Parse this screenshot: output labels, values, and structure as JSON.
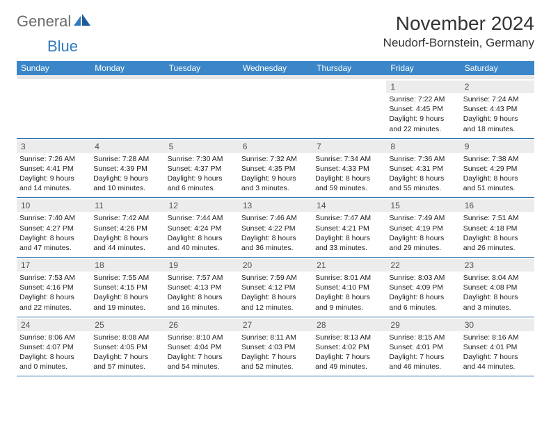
{
  "brand": {
    "a": "General",
    "b": "Blue"
  },
  "title": "November 2024",
  "location": "Neudorf-Bornstein, Germany",
  "colors": {
    "header_bg": "#3a86c8",
    "header_text": "#ffffff",
    "daynum_bg": "#ececec",
    "daynum_text": "#505050",
    "body_text": "#222222",
    "rule": "#2f6ea8",
    "logo_gray": "#6b6b6b",
    "logo_blue": "#2f7bbf"
  },
  "dow": [
    "Sunday",
    "Monday",
    "Tuesday",
    "Wednesday",
    "Thursday",
    "Friday",
    "Saturday"
  ],
  "weeks": [
    [
      null,
      null,
      null,
      null,
      null,
      {
        "n": "1",
        "sr": "Sunrise: 7:22 AM",
        "ss": "Sunset: 4:45 PM",
        "dl1": "Daylight: 9 hours",
        "dl2": "and 22 minutes."
      },
      {
        "n": "2",
        "sr": "Sunrise: 7:24 AM",
        "ss": "Sunset: 4:43 PM",
        "dl1": "Daylight: 9 hours",
        "dl2": "and 18 minutes."
      }
    ],
    [
      {
        "n": "3",
        "sr": "Sunrise: 7:26 AM",
        "ss": "Sunset: 4:41 PM",
        "dl1": "Daylight: 9 hours",
        "dl2": "and 14 minutes."
      },
      {
        "n": "4",
        "sr": "Sunrise: 7:28 AM",
        "ss": "Sunset: 4:39 PM",
        "dl1": "Daylight: 9 hours",
        "dl2": "and 10 minutes."
      },
      {
        "n": "5",
        "sr": "Sunrise: 7:30 AM",
        "ss": "Sunset: 4:37 PM",
        "dl1": "Daylight: 9 hours",
        "dl2": "and 6 minutes."
      },
      {
        "n": "6",
        "sr": "Sunrise: 7:32 AM",
        "ss": "Sunset: 4:35 PM",
        "dl1": "Daylight: 9 hours",
        "dl2": "and 3 minutes."
      },
      {
        "n": "7",
        "sr": "Sunrise: 7:34 AM",
        "ss": "Sunset: 4:33 PM",
        "dl1": "Daylight: 8 hours",
        "dl2": "and 59 minutes."
      },
      {
        "n": "8",
        "sr": "Sunrise: 7:36 AM",
        "ss": "Sunset: 4:31 PM",
        "dl1": "Daylight: 8 hours",
        "dl2": "and 55 minutes."
      },
      {
        "n": "9",
        "sr": "Sunrise: 7:38 AM",
        "ss": "Sunset: 4:29 PM",
        "dl1": "Daylight: 8 hours",
        "dl2": "and 51 minutes."
      }
    ],
    [
      {
        "n": "10",
        "sr": "Sunrise: 7:40 AM",
        "ss": "Sunset: 4:27 PM",
        "dl1": "Daylight: 8 hours",
        "dl2": "and 47 minutes."
      },
      {
        "n": "11",
        "sr": "Sunrise: 7:42 AM",
        "ss": "Sunset: 4:26 PM",
        "dl1": "Daylight: 8 hours",
        "dl2": "and 44 minutes."
      },
      {
        "n": "12",
        "sr": "Sunrise: 7:44 AM",
        "ss": "Sunset: 4:24 PM",
        "dl1": "Daylight: 8 hours",
        "dl2": "and 40 minutes."
      },
      {
        "n": "13",
        "sr": "Sunrise: 7:46 AM",
        "ss": "Sunset: 4:22 PM",
        "dl1": "Daylight: 8 hours",
        "dl2": "and 36 minutes."
      },
      {
        "n": "14",
        "sr": "Sunrise: 7:47 AM",
        "ss": "Sunset: 4:21 PM",
        "dl1": "Daylight: 8 hours",
        "dl2": "and 33 minutes."
      },
      {
        "n": "15",
        "sr": "Sunrise: 7:49 AM",
        "ss": "Sunset: 4:19 PM",
        "dl1": "Daylight: 8 hours",
        "dl2": "and 29 minutes."
      },
      {
        "n": "16",
        "sr": "Sunrise: 7:51 AM",
        "ss": "Sunset: 4:18 PM",
        "dl1": "Daylight: 8 hours",
        "dl2": "and 26 minutes."
      }
    ],
    [
      {
        "n": "17",
        "sr": "Sunrise: 7:53 AM",
        "ss": "Sunset: 4:16 PM",
        "dl1": "Daylight: 8 hours",
        "dl2": "and 22 minutes."
      },
      {
        "n": "18",
        "sr": "Sunrise: 7:55 AM",
        "ss": "Sunset: 4:15 PM",
        "dl1": "Daylight: 8 hours",
        "dl2": "and 19 minutes."
      },
      {
        "n": "19",
        "sr": "Sunrise: 7:57 AM",
        "ss": "Sunset: 4:13 PM",
        "dl1": "Daylight: 8 hours",
        "dl2": "and 16 minutes."
      },
      {
        "n": "20",
        "sr": "Sunrise: 7:59 AM",
        "ss": "Sunset: 4:12 PM",
        "dl1": "Daylight: 8 hours",
        "dl2": "and 12 minutes."
      },
      {
        "n": "21",
        "sr": "Sunrise: 8:01 AM",
        "ss": "Sunset: 4:10 PM",
        "dl1": "Daylight: 8 hours",
        "dl2": "and 9 minutes."
      },
      {
        "n": "22",
        "sr": "Sunrise: 8:03 AM",
        "ss": "Sunset: 4:09 PM",
        "dl1": "Daylight: 8 hours",
        "dl2": "and 6 minutes."
      },
      {
        "n": "23",
        "sr": "Sunrise: 8:04 AM",
        "ss": "Sunset: 4:08 PM",
        "dl1": "Daylight: 8 hours",
        "dl2": "and 3 minutes."
      }
    ],
    [
      {
        "n": "24",
        "sr": "Sunrise: 8:06 AM",
        "ss": "Sunset: 4:07 PM",
        "dl1": "Daylight: 8 hours",
        "dl2": "and 0 minutes."
      },
      {
        "n": "25",
        "sr": "Sunrise: 8:08 AM",
        "ss": "Sunset: 4:05 PM",
        "dl1": "Daylight: 7 hours",
        "dl2": "and 57 minutes."
      },
      {
        "n": "26",
        "sr": "Sunrise: 8:10 AM",
        "ss": "Sunset: 4:04 PM",
        "dl1": "Daylight: 7 hours",
        "dl2": "and 54 minutes."
      },
      {
        "n": "27",
        "sr": "Sunrise: 8:11 AM",
        "ss": "Sunset: 4:03 PM",
        "dl1": "Daylight: 7 hours",
        "dl2": "and 52 minutes."
      },
      {
        "n": "28",
        "sr": "Sunrise: 8:13 AM",
        "ss": "Sunset: 4:02 PM",
        "dl1": "Daylight: 7 hours",
        "dl2": "and 49 minutes."
      },
      {
        "n": "29",
        "sr": "Sunrise: 8:15 AM",
        "ss": "Sunset: 4:01 PM",
        "dl1": "Daylight: 7 hours",
        "dl2": "and 46 minutes."
      },
      {
        "n": "30",
        "sr": "Sunrise: 8:16 AM",
        "ss": "Sunset: 4:01 PM",
        "dl1": "Daylight: 7 hours",
        "dl2": "and 44 minutes."
      }
    ]
  ]
}
